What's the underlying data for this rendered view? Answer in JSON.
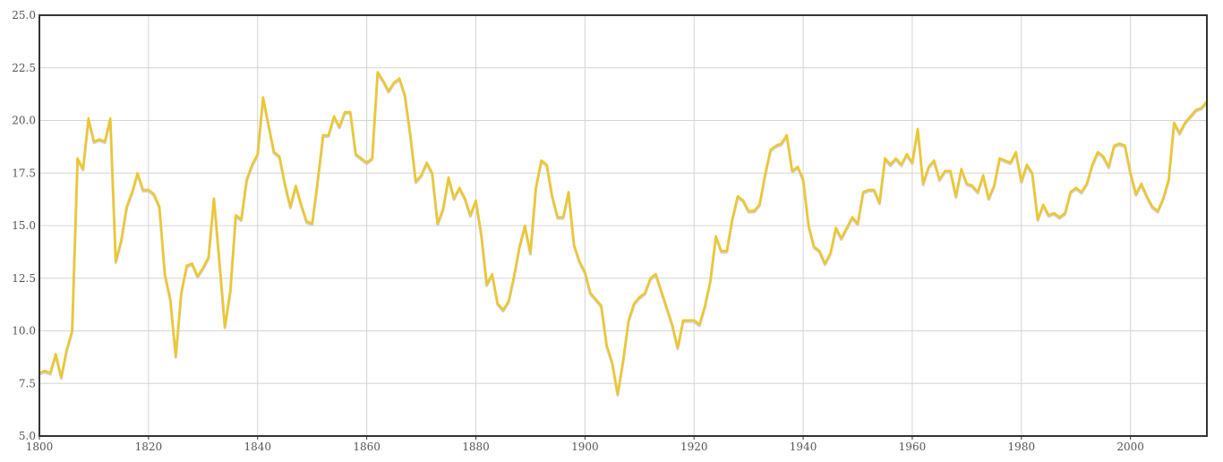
{
  "chart_data": {
    "type": "line",
    "title": "",
    "xlabel": "",
    "ylabel": "",
    "xlim": [
      1800,
      2014
    ],
    "ylim": [
      5.0,
      25.0
    ],
    "grid": true,
    "x_ticks": [
      1800,
      1820,
      1840,
      1860,
      1880,
      1900,
      1920,
      1940,
      1960,
      1980,
      2000
    ],
    "x_tick_labels": [
      "1800",
      "1820",
      "1840",
      "1860",
      "1880",
      "1900",
      "1920",
      "1940",
      "1960",
      "1980",
      "2000"
    ],
    "y_ticks": [
      5.0,
      7.5,
      10.0,
      12.5,
      15.0,
      17.5,
      20.0,
      22.5,
      25.0
    ],
    "y_tick_labels": [
      "5.0",
      "7.5",
      "10.0",
      "12.5",
      "15.0",
      "17.5",
      "20.0",
      "22.5",
      "25.0"
    ],
    "series": [
      {
        "color": "#eec72c",
        "x": [
          1800,
          1801,
          1802,
          1803,
          1804,
          1805,
          1806,
          1807,
          1808,
          1809,
          1810,
          1811,
          1812,
          1813,
          1814,
          1815,
          1816,
          1817,
          1818,
          1819,
          1820,
          1821,
          1822,
          1823,
          1824,
          1825,
          1826,
          1827,
          1828,
          1829,
          1830,
          1831,
          1832,
          1833,
          1834,
          1835,
          1836,
          1837,
          1838,
          1839,
          1840,
          1841,
          1842,
          1843,
          1844,
          1845,
          1846,
          1847,
          1848,
          1849,
          1850,
          1851,
          1852,
          1853,
          1854,
          1855,
          1856,
          1857,
          1858,
          1859,
          1860,
          1861,
          1862,
          1863,
          1864,
          1865,
          1866,
          1867,
          1868,
          1869,
          1870,
          1871,
          1872,
          1873,
          1874,
          1875,
          1876,
          1877,
          1878,
          1879,
          1880,
          1881,
          1882,
          1883,
          1884,
          1885,
          1886,
          1887,
          1888,
          1889,
          1890,
          1891,
          1892,
          1893,
          1894,
          1895,
          1896,
          1897,
          1898,
          1899,
          1900,
          1901,
          1902,
          1903,
          1904,
          1905,
          1906,
          1907,
          1908,
          1909,
          1910,
          1911,
          1912,
          1913,
          1914,
          1915,
          1916,
          1917,
          1918,
          1919,
          1920,
          1921,
          1922,
          1923,
          1924,
          1925,
          1926,
          1927,
          1928,
          1929,
          1930,
          1931,
          1932,
          1933,
          1934,
          1935,
          1936,
          1937,
          1938,
          1939,
          1940,
          1941,
          1942,
          1943,
          1944,
          1945,
          1946,
          1947,
          1948,
          1949,
          1950,
          1951,
          1952,
          1953,
          1954,
          1955,
          1956,
          1957,
          1958,
          1959,
          1960,
          1961,
          1962,
          1963,
          1964,
          1965,
          1966,
          1967,
          1968,
          1969,
          1970,
          1971,
          1972,
          1973,
          1974,
          1975,
          1976,
          1977,
          1978,
          1979,
          1980,
          1981,
          1982,
          1983,
          1984,
          1985,
          1986,
          1987,
          1988,
          1989,
          1990,
          1991,
          1992,
          1993,
          1994,
          1995,
          1996,
          1997,
          1998,
          1999,
          2000,
          2001,
          2002,
          2003,
          2004,
          2005,
          2006,
          2007,
          2008,
          2009,
          2010,
          2011,
          2012,
          2013,
          2014
        ],
        "y": [
          8.0,
          8.1,
          8.0,
          8.9,
          7.8,
          9.1,
          10.0,
          18.2,
          17.7,
          20.1,
          19.0,
          19.1,
          19.0,
          20.1,
          13.3,
          14.3,
          15.9,
          16.6,
          17.5,
          16.7,
          16.7,
          16.5,
          15.9,
          12.7,
          11.5,
          8.8,
          11.8,
          13.1,
          13.2,
          12.6,
          13.0,
          13.5,
          16.3,
          13.3,
          10.2,
          11.9,
          15.5,
          15.3,
          17.2,
          17.9,
          18.4,
          21.1,
          19.8,
          18.5,
          18.3,
          17.0,
          15.9,
          16.9,
          16.0,
          15.2,
          15.1,
          17.1,
          19.3,
          19.3,
          20.2,
          19.7,
          20.4,
          20.4,
          18.4,
          18.2,
          18.0,
          18.2,
          22.3,
          21.9,
          21.4,
          21.8,
          22.0,
          21.2,
          19.3,
          17.1,
          17.4,
          18.0,
          17.5,
          15.1,
          15.8,
          17.3,
          16.3,
          16.8,
          16.3,
          15.5,
          16.2,
          14.6,
          12.2,
          12.7,
          11.3,
          11.0,
          11.4,
          12.6,
          14.0,
          15.0,
          13.7,
          16.8,
          18.1,
          17.9,
          16.4,
          15.4,
          15.4,
          16.6,
          14.1,
          13.3,
          12.8,
          11.8,
          11.5,
          11.2,
          9.3,
          8.5,
          7.0,
          8.6,
          10.5,
          11.3,
          11.6,
          11.8,
          12.5,
          12.7,
          11.9,
          11.1,
          10.3,
          9.2,
          10.5,
          10.5,
          10.5,
          10.3,
          11.2,
          12.4,
          14.5,
          13.8,
          13.8,
          15.3,
          16.4,
          16.2,
          15.7,
          15.7,
          16.0,
          17.4,
          18.6,
          18.8,
          18.9,
          19.3,
          17.6,
          17.8,
          17.2,
          15.0,
          14.0,
          13.8,
          13.2,
          13.7,
          14.9,
          14.4,
          14.9,
          15.4,
          15.1,
          16.6,
          16.7,
          16.7,
          16.1,
          18.2,
          17.9,
          18.2,
          17.9,
          18.4,
          18.0,
          19.6,
          17.0,
          17.8,
          18.1,
          17.2,
          17.6,
          17.6,
          16.4,
          17.7,
          17.0,
          16.9,
          16.6,
          17.4,
          16.3,
          16.9,
          18.2,
          18.1,
          18.0,
          18.5,
          17.1,
          17.9,
          17.5,
          15.3,
          16.0,
          15.5,
          15.6,
          15.4,
          15.6,
          16.6,
          16.8,
          16.6,
          17.0,
          17.9,
          18.5,
          18.3,
          17.8,
          18.8,
          18.9,
          18.8,
          17.5,
          16.5,
          17.0,
          16.4,
          15.9,
          15.7,
          16.3,
          17.2,
          19.9,
          19.4,
          19.9,
          20.2,
          20.5,
          20.6,
          20.9
        ]
      }
    ]
  }
}
